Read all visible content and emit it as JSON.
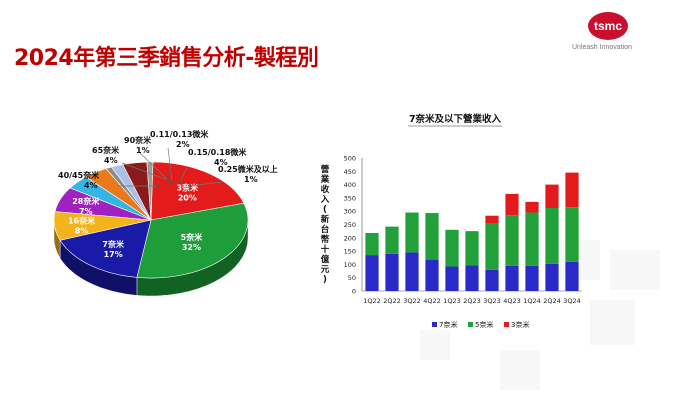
{
  "header": {
    "title": "2024年第三季銷售分析-製程別",
    "logo_text": "tsmc",
    "logo_tagline": "Unleash Innovation"
  },
  "chart_data": [
    {
      "type": "pie",
      "title": "",
      "slices": [
        {
          "label": "3奈米",
          "value": 20,
          "value_label": "20%",
          "color": "#e31b1b"
        },
        {
          "label": "5奈米",
          "value": 32,
          "value_label": "32%",
          "color": "#1d9e3a"
        },
        {
          "label": "7奈米",
          "value": 17,
          "value_label": "17%",
          "color": "#1a1aa8"
        },
        {
          "label": "16奈米",
          "value": 8,
          "value_label": "8%",
          "color": "#f2b31b"
        },
        {
          "label": "28奈米",
          "value": 7,
          "value_label": "7%",
          "color": "#a020c0"
        },
        {
          "label": "40/45奈米",
          "value": 4,
          "value_label": "4%",
          "color": "#33b5e5"
        },
        {
          "label": "65奈米",
          "value": 4,
          "value_label": "4%",
          "color": "#e9791b"
        },
        {
          "label": "90奈米",
          "value": 1,
          "value_label": "1%",
          "color": "#8a8a8a"
        },
        {
          "label": "0.11/0.13微米",
          "value": 2,
          "value_label": "2%",
          "color": "#a9c0e8"
        },
        {
          "label": "0.15/0.18微米",
          "value": 4,
          "value_label": "4%",
          "color": "#8b1a1a"
        },
        {
          "label": "0.25微米及以上",
          "value": 1,
          "value_label": "1%",
          "color": "#9a9a9a"
        }
      ]
    },
    {
      "type": "bar",
      "stacked": true,
      "title": "7奈米及以下營業收入",
      "ylabel": "營業收入(新台幣十億元)",
      "xlabel": "",
      "ylim": [
        0,
        500
      ],
      "yticks": [
        0,
        50,
        100,
        150,
        200,
        250,
        300,
        350,
        400,
        450,
        500
      ],
      "categories": [
        "1Q22",
        "2Q22",
        "3Q22",
        "4Q22",
        "1Q23",
        "2Q23",
        "3Q23",
        "4Q23",
        "1Q24",
        "2Q24",
        "3Q24"
      ],
      "series": [
        {
          "name": "7奈米",
          "color": "#2a2ac8",
          "values": [
            135,
            140,
            145,
            118,
            92,
            97,
            80,
            95,
            95,
            102,
            110
          ]
        },
        {
          "name": "5奈米",
          "color": "#22a03a",
          "values": [
            83,
            102,
            150,
            175,
            138,
            128,
            173,
            190,
            200,
            210,
            205
          ]
        },
        {
          "name": "3奈米",
          "color": "#e31b1b",
          "values": [
            0,
            0,
            0,
            0,
            0,
            0,
            30,
            80,
            40,
            88,
            130
          ]
        }
      ],
      "legend_position": "bottom"
    }
  ]
}
